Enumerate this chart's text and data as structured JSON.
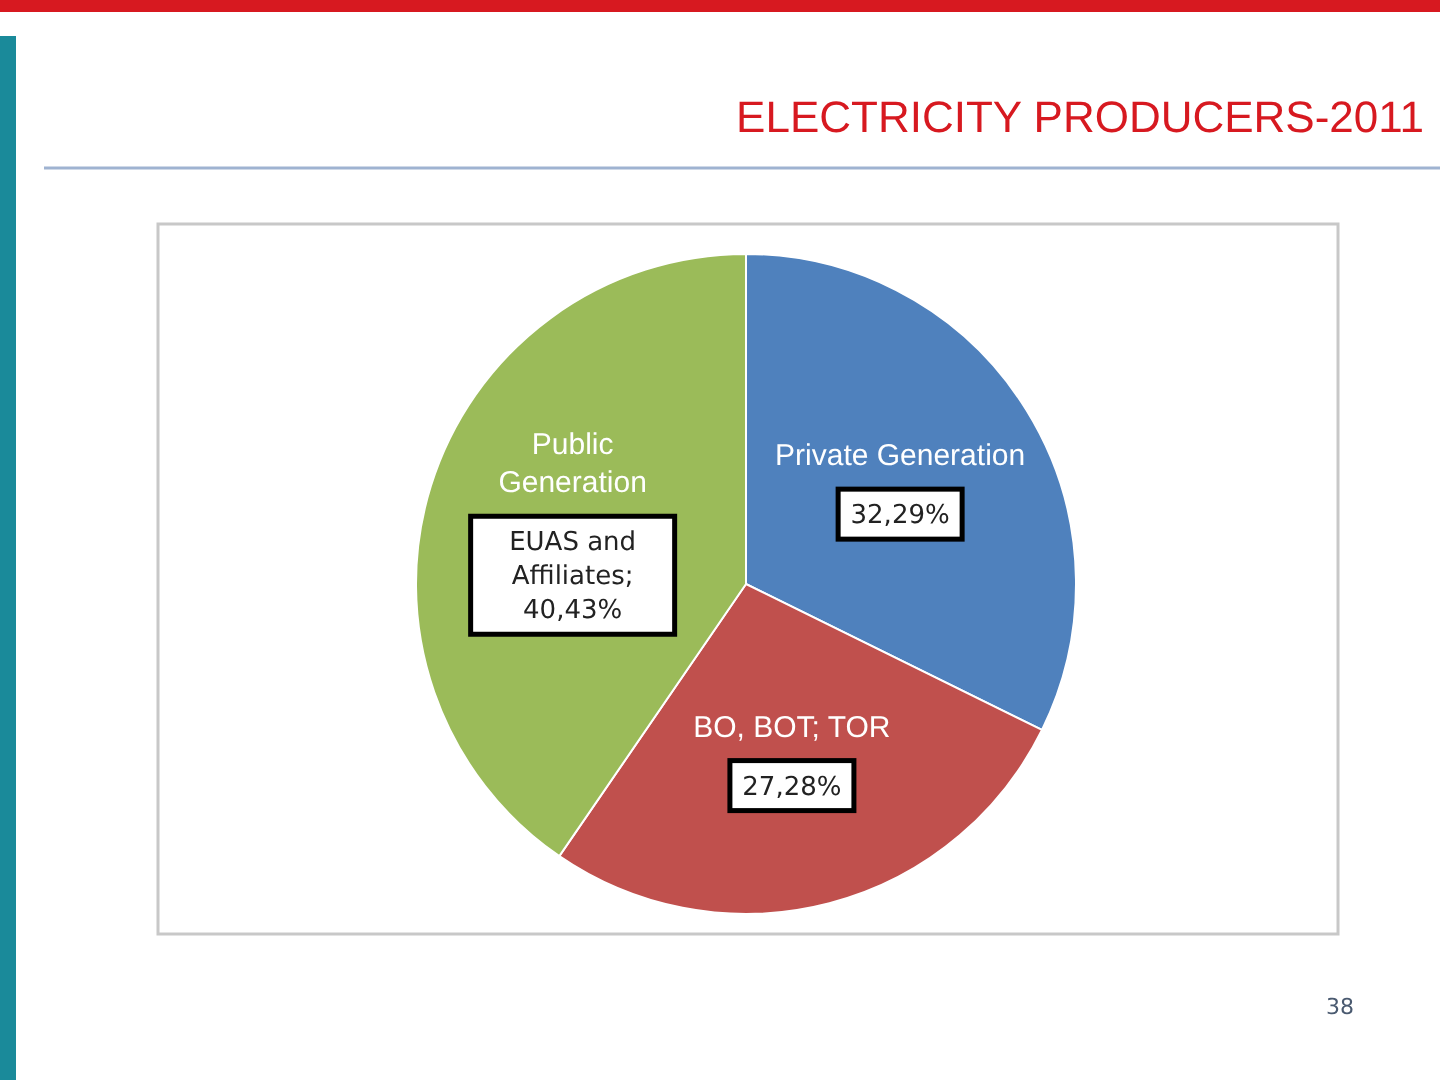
{
  "chart_data": {
    "type": "pie",
    "title": "ELECTRICITY PRODUCERS-2011",
    "categories": [
      "Private Generation",
      "BO, BOT; TOR",
      "Public Generation"
    ],
    "values": [
      32.29,
      27.28,
      40.43
    ],
    "colors": [
      "#4f81bd",
      "#c0504d",
      "#9bbb59"
    ],
    "value_labels": [
      "32,29%",
      "27,28%",
      "EUAS and Affiliates; 40,43%"
    ],
    "annotations": [
      "38"
    ]
  }
}
